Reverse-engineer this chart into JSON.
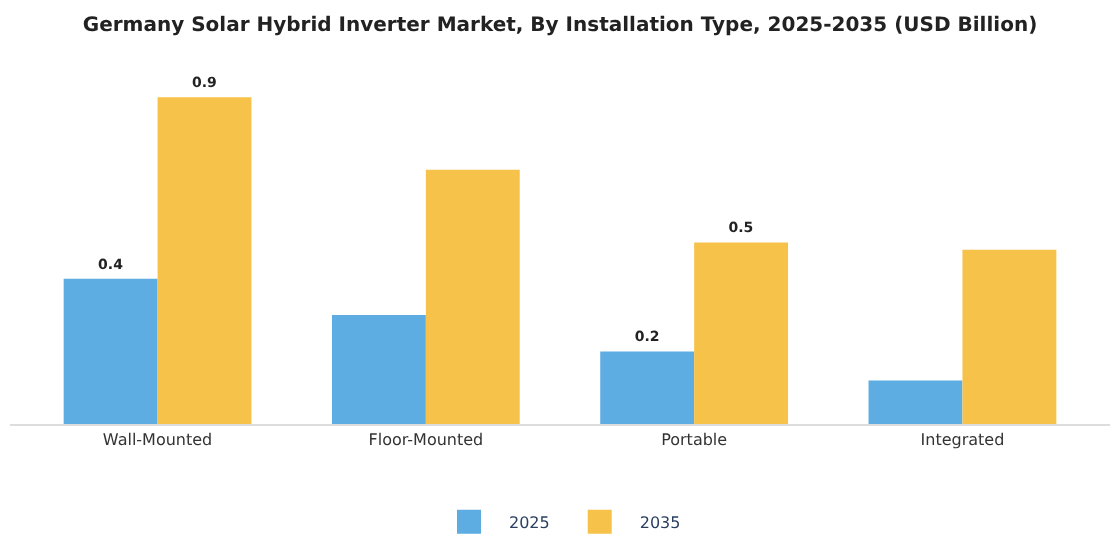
{
  "chart_data": {
    "type": "bar",
    "title": "Germany Solar Hybrid Inverter Market, By Installation Type, 2025-2035 (USD Billion)",
    "categories": [
      "Wall-Mounted",
      "Floor-Mounted",
      "Portable",
      "Integrated"
    ],
    "series": [
      {
        "name": "2025",
        "color": "#5dade2",
        "values": [
          0.4,
          0.3,
          0.2,
          0.12
        ],
        "value_labels": [
          "0.4",
          null,
          "0.2",
          null
        ]
      },
      {
        "name": "2035",
        "color": "#f7c24a",
        "values": [
          0.9,
          0.7,
          0.5,
          0.48
        ],
        "value_labels": [
          "0.9",
          null,
          "0.5",
          null
        ]
      }
    ],
    "legend": "bottom",
    "tick_labels": "x"
  }
}
